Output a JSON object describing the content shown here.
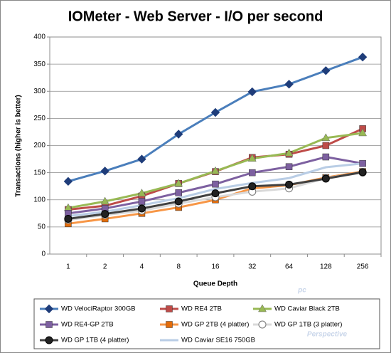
{
  "chart_data": {
    "type": "line",
    "title": "IOMeter - Web Server - I/O per second",
    "y_label": "Transactions (higher is better)",
    "x_label": "Queue Depth",
    "categories": [
      "1",
      "2",
      "4",
      "8",
      "16",
      "32",
      "64",
      "128",
      "256"
    ],
    "ylim": [
      0,
      400
    ],
    "yticks": [
      0,
      50,
      100,
      150,
      200,
      250,
      300,
      350,
      400
    ],
    "grid": true,
    "legend": "bottom",
    "watermark": [
      "pc",
      "Perspective"
    ],
    "series": [
      {
        "name": "WD VelociRaptor 300GB",
        "color": "#4a7ebb",
        "marker": "diamond",
        "values": [
          134,
          153,
          175,
          221,
          261,
          299,
          313,
          338,
          363
        ]
      },
      {
        "name": "WD RE4 2TB",
        "color": "#be4b48",
        "marker": "square",
        "values": [
          82,
          89,
          107,
          130,
          152,
          178,
          184,
          200,
          231
        ]
      },
      {
        "name": "WD Caviar Black 2TB",
        "color": "#98b954",
        "marker": "triangle",
        "values": [
          85,
          97,
          112,
          130,
          153,
          176,
          186,
          214,
          223
        ]
      },
      {
        "name": "WD RE4-GP 2TB",
        "color": "#7d60a0",
        "marker": "square",
        "values": [
          75,
          84,
          97,
          113,
          129,
          150,
          161,
          179,
          167
        ]
      },
      {
        "name": "WD GP 2TB (4 platter)",
        "color": "#f79646",
        "marker": "square",
        "values": [
          56,
          65,
          75,
          86,
          100,
          121,
          127,
          141,
          152
        ]
      },
      {
        "name": "WD GP 1TB (3 platter)",
        "color": "#d9d9d9",
        "marker": "circle-open",
        "values": [
          63,
          72,
          80,
          93,
          105,
          115,
          121,
          140,
          150
        ]
      },
      {
        "name": "WD GP 1TB (4 platter)",
        "color": "#404040",
        "marker": "circle",
        "values": [
          65,
          74,
          84,
          97,
          112,
          125,
          128,
          139,
          151
        ]
      },
      {
        "name": "WD Caviar SE16 750GB",
        "color": "#b9cde5",
        "marker": "none",
        "values": [
          70,
          78,
          90,
          103,
          120,
          131,
          140,
          160,
          167
        ]
      }
    ]
  }
}
